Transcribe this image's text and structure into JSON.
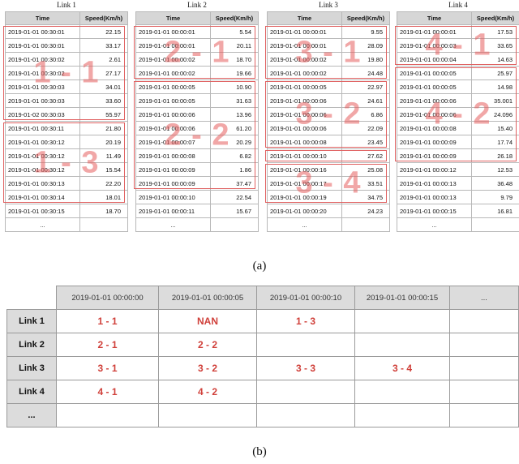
{
  "panel_a": {
    "caption": "(a)",
    "header": {
      "time": "Time",
      "speed": "Speed(Km/h)"
    },
    "links": [
      {
        "title": "Link 1",
        "rows": [
          [
            "2019-01-01 00:30:01",
            "22.15"
          ],
          [
            "2019-01-01 00:30:01",
            "33.17"
          ],
          [
            "2019-01-01 00:30:02",
            "2.61"
          ],
          [
            "2019-01-01 00:30:02",
            "27.17"
          ],
          [
            "2019-01-01 00:30:03",
            "34.01"
          ],
          [
            "2019-01-01 00:30:03",
            "33.60"
          ],
          [
            "2019-01-02 00:30:03",
            "55.97"
          ],
          [
            "2019-01-01 00:30:11",
            "21.80"
          ],
          [
            "2019-01-01 00:30:12",
            "20.19"
          ],
          [
            "2019-01-01 00:30:12",
            "11.49"
          ],
          [
            "2019-01-01 00:30:12",
            "15.54"
          ],
          [
            "2019-01-01 00:30:13",
            "22.20"
          ],
          [
            "2019-01-01 00:30:14",
            "18.01"
          ],
          [
            "2019-01-01 00:30:15",
            "18.70"
          ]
        ],
        "segments": [
          {
            "label": "1 - 1"
          },
          {
            "label": "1 - 3"
          }
        ]
      },
      {
        "title": "Link 2",
        "rows": [
          [
            "2019-01-01 00:00:01",
            "5.54"
          ],
          [
            "2019-01-01 00:00:01",
            "20.11"
          ],
          [
            "2019-01-01 00:00:02",
            "18.70"
          ],
          [
            "2019-01-01 00:00:02",
            "19.66"
          ],
          [
            "2019-01-01 00:00:05",
            "10.90"
          ],
          [
            "2019-01-01 00:00:05",
            "31.63"
          ],
          [
            "2019-01-01 00:00:06",
            "13.96"
          ],
          [
            "2019-01-01 00:00:06",
            "61.20"
          ],
          [
            "2019-01-01 00:00:07",
            "20.29"
          ],
          [
            "2019-01-01 00:00:08",
            "6.82"
          ],
          [
            "2019-01-01 00:00:09",
            "1.86"
          ],
          [
            "2019-01-01 00:00:09",
            "37.47"
          ],
          [
            "2019-01-01 00:00:10",
            "22.54"
          ],
          [
            "2019-01-01 00:00:11",
            "15.67"
          ]
        ],
        "segments": [
          {
            "label": "2 - 1"
          },
          {
            "label": "2 - 2"
          }
        ]
      },
      {
        "title": "Link 3",
        "rows": [
          [
            "2019-01-01 00:00:01",
            "9.55"
          ],
          [
            "2019-01-01 00:00:01",
            "28.09"
          ],
          [
            "2019-01-01 00:00:02",
            "19.80"
          ],
          [
            "2019-01-01 00:00:02",
            "24.48"
          ],
          [
            "2019-01-01 00:00:05",
            "22.97"
          ],
          [
            "2019-01-01 00:00:06",
            "24.61"
          ],
          [
            "2019-01-01 00:00:06",
            "6.86"
          ],
          [
            "2019-01-01 00:00:06",
            "22.09"
          ],
          [
            "2019-01-01 00:00:08",
            "23.45"
          ],
          [
            "2019-01-01 00:00:10",
            "27.62"
          ],
          [
            "2019-01-01 00:00:16",
            "25.08"
          ],
          [
            "2019-01-01 00:00:17",
            "33.51"
          ],
          [
            "2019-01-01 00:00:19",
            "34.75"
          ],
          [
            "2019-01-01 00:00:20",
            "24.23"
          ]
        ],
        "segments": [
          {
            "label": "3 - 1"
          },
          {
            "label": "3 - 2"
          },
          {
            "label": "3 - 3"
          },
          {
            "label": "3 - 4"
          }
        ]
      },
      {
        "title": "Link 4",
        "rows": [
          [
            "2019-01-01 00:00:01",
            "17.53"
          ],
          [
            "2019-01-01 00:00:03",
            "33.65"
          ],
          [
            "2019-01-01 00:00:04",
            "14.63"
          ],
          [
            "2019-01-01 00:00:05",
            "25.97"
          ],
          [
            "2019-01-01 00:00:05",
            "14.98"
          ],
          [
            "2019-01-01 00:00:06",
            "35.001"
          ],
          [
            "2019-01-01 00:00:06",
            "24.096"
          ],
          [
            "2019-01-01 00:00:08",
            "15.40"
          ],
          [
            "2019-01-01 00:00:09",
            "17.74"
          ],
          [
            "2019-01-01 00:00:09",
            "26.18"
          ],
          [
            "2019-01-01 00:00:12",
            "12.53"
          ],
          [
            "2019-01-01 00:00:13",
            "36.48"
          ],
          [
            "2019-01-01 00:00:13",
            "9.79"
          ],
          [
            "2019-01-01 00:00:15",
            "16.81"
          ]
        ],
        "segments": [
          {
            "label": "4 - 1"
          },
          {
            "label": "4 - 2"
          }
        ]
      }
    ],
    "ellipsis": "..."
  },
  "panel_b": {
    "caption": "(b)",
    "columns": [
      "2019-01-01 00:00:00",
      "2019-01-01 00:00:05",
      "2019-01-01 00:00:10",
      "2019-01-01 00:00:15",
      "..."
    ],
    "rows": [
      {
        "label": "Link 1",
        "cells": [
          "1 - 1",
          "NAN",
          "1 - 3",
          "",
          ""
        ]
      },
      {
        "label": "Link 2",
        "cells": [
          "2 - 1",
          "2 - 2",
          "",
          "",
          ""
        ]
      },
      {
        "label": "Link 3",
        "cells": [
          "3 - 1",
          "3 - 2",
          "3 - 3",
          "3 - 4",
          ""
        ]
      },
      {
        "label": "Link 4",
        "cells": [
          "4 - 1",
          "4 - 2",
          "",
          "",
          ""
        ]
      },
      {
        "label": "...",
        "cells": [
          "",
          "",
          "",
          "",
          ""
        ]
      }
    ]
  }
}
